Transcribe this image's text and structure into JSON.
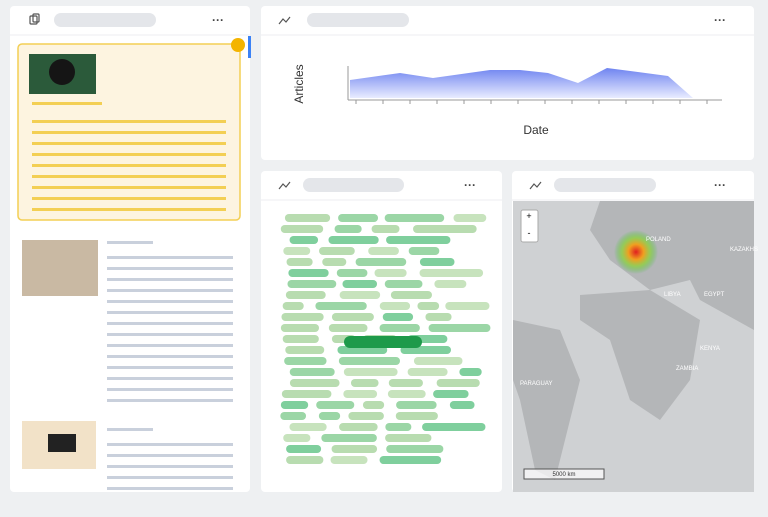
{
  "menu": "···",
  "trend_panel": {
    "y_label": "Articles",
    "x_label": "Date"
  },
  "map": {
    "zoom_in": "+",
    "zoom_out": "-",
    "scale": "5000 km",
    "labels": [
      "POLAND",
      "LIBYA",
      "EGYPT",
      "KENYA",
      "ZAMBIA",
      "PARAGUAY",
      "KAZAKHS"
    ]
  }
}
